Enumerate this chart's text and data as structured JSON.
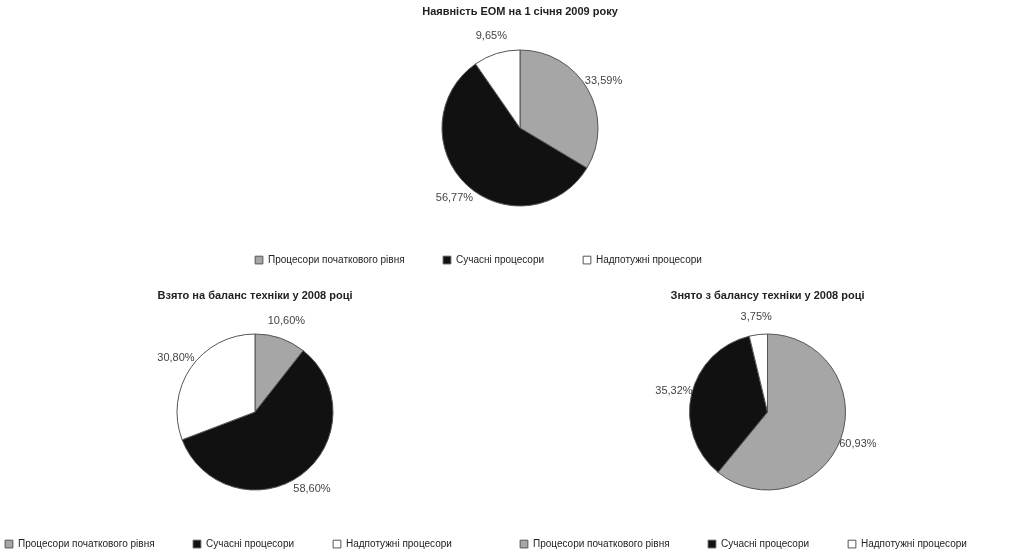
{
  "chart_data": [
    {
      "type": "pie",
      "title": "Наявність ЕОМ на 1 січня 2009 року",
      "categories": [
        "Процесори початкового рівня",
        "Сучасні процесори",
        "Надпотужні процесори"
      ],
      "values": [
        33.59,
        56.77,
        9.65
      ],
      "value_labels": [
        "33,59%",
        "56,77%",
        "9,65%"
      ],
      "colors": [
        "#a6a6a6",
        "#111111",
        "#ffffff"
      ],
      "legend": "bottom"
    },
    {
      "type": "pie",
      "title": "Взято на баланс техніки у 2008 році",
      "categories": [
        "Процесори початкового рівня",
        "Сучасні процесори",
        "Надпотужні процесори"
      ],
      "values": [
        10.6,
        58.6,
        30.8
      ],
      "value_labels": [
        "10,60%",
        "58,60%",
        "30,80%"
      ],
      "colors": [
        "#a6a6a6",
        "#111111",
        "#ffffff"
      ],
      "legend": "bottom"
    },
    {
      "type": "pie",
      "title": "Знято з балансу техніки у 2008 році",
      "categories": [
        "Процесори початкового рівня",
        "Сучасні процесори",
        "Надпотужні процесори"
      ],
      "values": [
        60.93,
        35.32,
        3.75
      ],
      "value_labels": [
        "60,93%",
        "35,32%",
        "3,75%"
      ],
      "colors": [
        "#a6a6a6",
        "#111111",
        "#ffffff"
      ],
      "legend": "bottom"
    }
  ]
}
